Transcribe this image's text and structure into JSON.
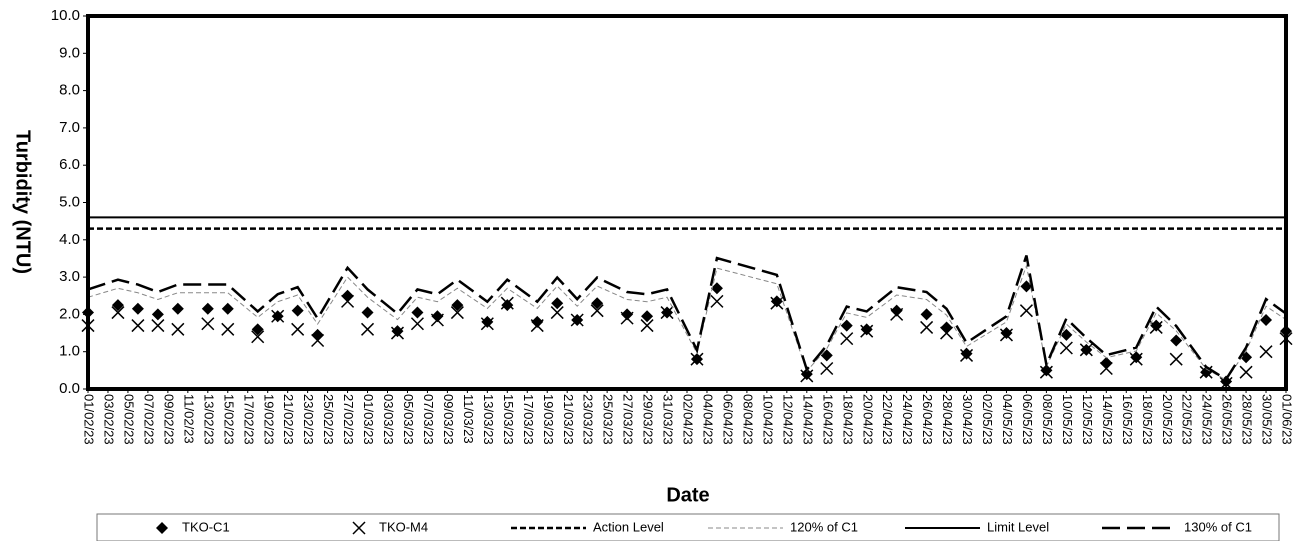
{
  "chart_data": {
    "type": "line",
    "y_label": "Turbidity (NTU)",
    "x_label": "Date",
    "xlim": [
      "01/02/23",
      "01/06/23"
    ],
    "xticks": [
      "01/02/23",
      "03/02/23",
      "05/02/23",
      "07/02/23",
      "09/02/23",
      "11/02/23",
      "13/02/23",
      "15/02/23",
      "17/02/23",
      "19/02/23",
      "21/02/23",
      "23/02/23",
      "25/02/23",
      "27/02/23",
      "01/03/23",
      "03/03/23",
      "05/03/23",
      "07/03/23",
      "09/03/23",
      "11/03/23",
      "13/03/23",
      "15/03/23",
      "17/03/23",
      "19/03/23",
      "21/03/23",
      "23/03/23",
      "25/03/23",
      "27/03/23",
      "29/03/23",
      "31/03/23",
      "02/04/23",
      "04/04/23",
      "06/04/23",
      "08/04/23",
      "10/04/23",
      "12/04/23",
      "14/04/23",
      "16/04/23",
      "18/04/23",
      "20/04/23",
      "22/04/23",
      "24/04/23",
      "26/04/23",
      "28/04/23",
      "30/04/23",
      "02/05/23",
      "04/05/23",
      "06/05/23",
      "08/05/23",
      "10/05/23",
      "12/05/23",
      "14/05/23",
      "16/05/23",
      "18/05/23",
      "20/05/23",
      "22/05/23",
      "24/05/23",
      "26/05/23",
      "28/05/23",
      "30/05/23",
      "01/06/23"
    ],
    "ylim": [
      0,
      10
    ],
    "yticks": [
      {
        "value": 0,
        "label": "0.0"
      },
      {
        "value": 1,
        "label": "1.0"
      },
      {
        "value": 2,
        "label": "2.0"
      },
      {
        "value": 3,
        "label": "3.0"
      },
      {
        "value": 4,
        "label": "4.0"
      },
      {
        "value": 5,
        "label": "5.0"
      },
      {
        "value": 6,
        "label": "6.0"
      },
      {
        "value": 7,
        "label": "7.0"
      },
      {
        "value": 8,
        "label": "8.0"
      },
      {
        "value": 9,
        "label": "9.0"
      },
      {
        "value": 10,
        "label": "10.0"
      }
    ],
    "x": [
      "01/02/23",
      "04/02/23",
      "06/02/23",
      "08/02/23",
      "10/02/23",
      "13/02/23",
      "15/02/23",
      "18/02/23",
      "20/02/23",
      "22/02/23",
      "24/02/23",
      "27/02/23",
      "01/03/23",
      "04/03/23",
      "06/03/23",
      "08/03/23",
      "10/03/23",
      "13/03/23",
      "15/03/23",
      "18/03/23",
      "20/03/23",
      "22/03/23",
      "24/03/23",
      "27/03/23",
      "29/03/23",
      "31/03/23",
      "03/04/23",
      "05/04/23",
      "11/04/23",
      "14/04/23",
      "16/04/23",
      "18/04/23",
      "20/04/23",
      "23/04/23",
      "26/04/23",
      "28/04/23",
      "30/04/23",
      "04/05/23",
      "06/05/23",
      "08/05/23",
      "10/05/23",
      "12/05/23",
      "14/05/23",
      "17/05/23",
      "19/05/23",
      "21/05/23",
      "24/05/23",
      "26/05/23",
      "28/05/23",
      "30/05/23",
      "01/06/23"
    ],
    "series": [
      {
        "name": "TKO-C1",
        "color": "#000000",
        "marker": "diamond",
        "values": [
          2.05,
          2.25,
          2.15,
          2.0,
          2.15,
          2.15,
          2.15,
          1.6,
          1.95,
          2.1,
          1.45,
          2.5,
          2.05,
          1.55,
          2.05,
          1.95,
          2.25,
          1.8,
          2.25,
          1.8,
          2.3,
          1.85,
          2.3,
          2.0,
          1.95,
          2.05,
          0.8,
          2.7,
          2.35,
          0.4,
          0.9,
          1.7,
          1.6,
          2.1,
          2.0,
          1.65,
          0.95,
          1.5,
          2.75,
          0.5,
          1.45,
          1.05,
          0.7,
          0.85,
          1.7,
          1.3,
          0.45,
          0.2,
          0.85,
          1.85,
          1.55
        ]
      },
      {
        "name": "TKO-M4",
        "color": "#000000",
        "marker": "x",
        "values": [
          1.7,
          2.05,
          1.7,
          1.7,
          1.6,
          1.75,
          1.6,
          1.4,
          1.95,
          1.6,
          1.3,
          2.35,
          1.6,
          1.5,
          1.75,
          1.85,
          2.05,
          1.75,
          2.3,
          1.7,
          2.05,
          1.85,
          2.1,
          1.9,
          1.7,
          2.05,
          0.8,
          2.35,
          2.3,
          0.35,
          0.55,
          1.35,
          1.55,
          2.0,
          1.65,
          1.5,
          0.9,
          1.45,
          2.1,
          0.45,
          1.1,
          1.05,
          0.55,
          0.8,
          1.65,
          0.8,
          0.45,
          0.15,
          0.45,
          1.0,
          1.35
        ]
      },
      {
        "name": "Action Level",
        "color": "#000000",
        "dash": "6,3",
        "width": 2.5,
        "level": 4.3
      },
      {
        "name": "120% of C1",
        "color": "#888888",
        "dash": "5,3",
        "width": 1,
        "values": [
          2.46,
          2.7,
          2.58,
          2.4,
          2.58,
          2.58,
          2.58,
          1.92,
          2.34,
          2.52,
          1.74,
          3.0,
          2.46,
          1.86,
          2.46,
          2.34,
          2.7,
          2.16,
          2.7,
          2.16,
          2.76,
          2.22,
          2.76,
          2.4,
          2.34,
          2.46,
          0.96,
          3.24,
          2.82,
          0.48,
          1.08,
          2.04,
          1.92,
          2.52,
          2.4,
          1.98,
          1.14,
          1.8,
          3.3,
          0.6,
          1.74,
          1.26,
          0.84,
          1.02,
          2.04,
          1.56,
          0.54,
          0.24,
          1.02,
          2.22,
          1.86
        ]
      },
      {
        "name": "Limit Level",
        "color": "#000000",
        "dash": "none",
        "width": 2,
        "level": 4.6
      },
      {
        "name": "130% of C1",
        "color": "#000000",
        "dash": "18,7",
        "width": 2.5,
        "values": [
          2.67,
          2.93,
          2.8,
          2.6,
          2.8,
          2.8,
          2.8,
          2.08,
          2.54,
          2.73,
          1.89,
          3.25,
          2.67,
          2.02,
          2.67,
          2.54,
          2.93,
          2.34,
          2.93,
          2.34,
          2.99,
          2.41,
          2.99,
          2.6,
          2.54,
          2.67,
          1.04,
          3.51,
          3.06,
          0.52,
          1.17,
          2.21,
          2.08,
          2.73,
          2.6,
          2.15,
          1.24,
          1.95,
          3.58,
          0.65,
          1.89,
          1.37,
          0.91,
          1.11,
          2.21,
          1.69,
          0.59,
          0.26,
          1.11,
          2.41,
          2.02
        ]
      }
    ]
  }
}
